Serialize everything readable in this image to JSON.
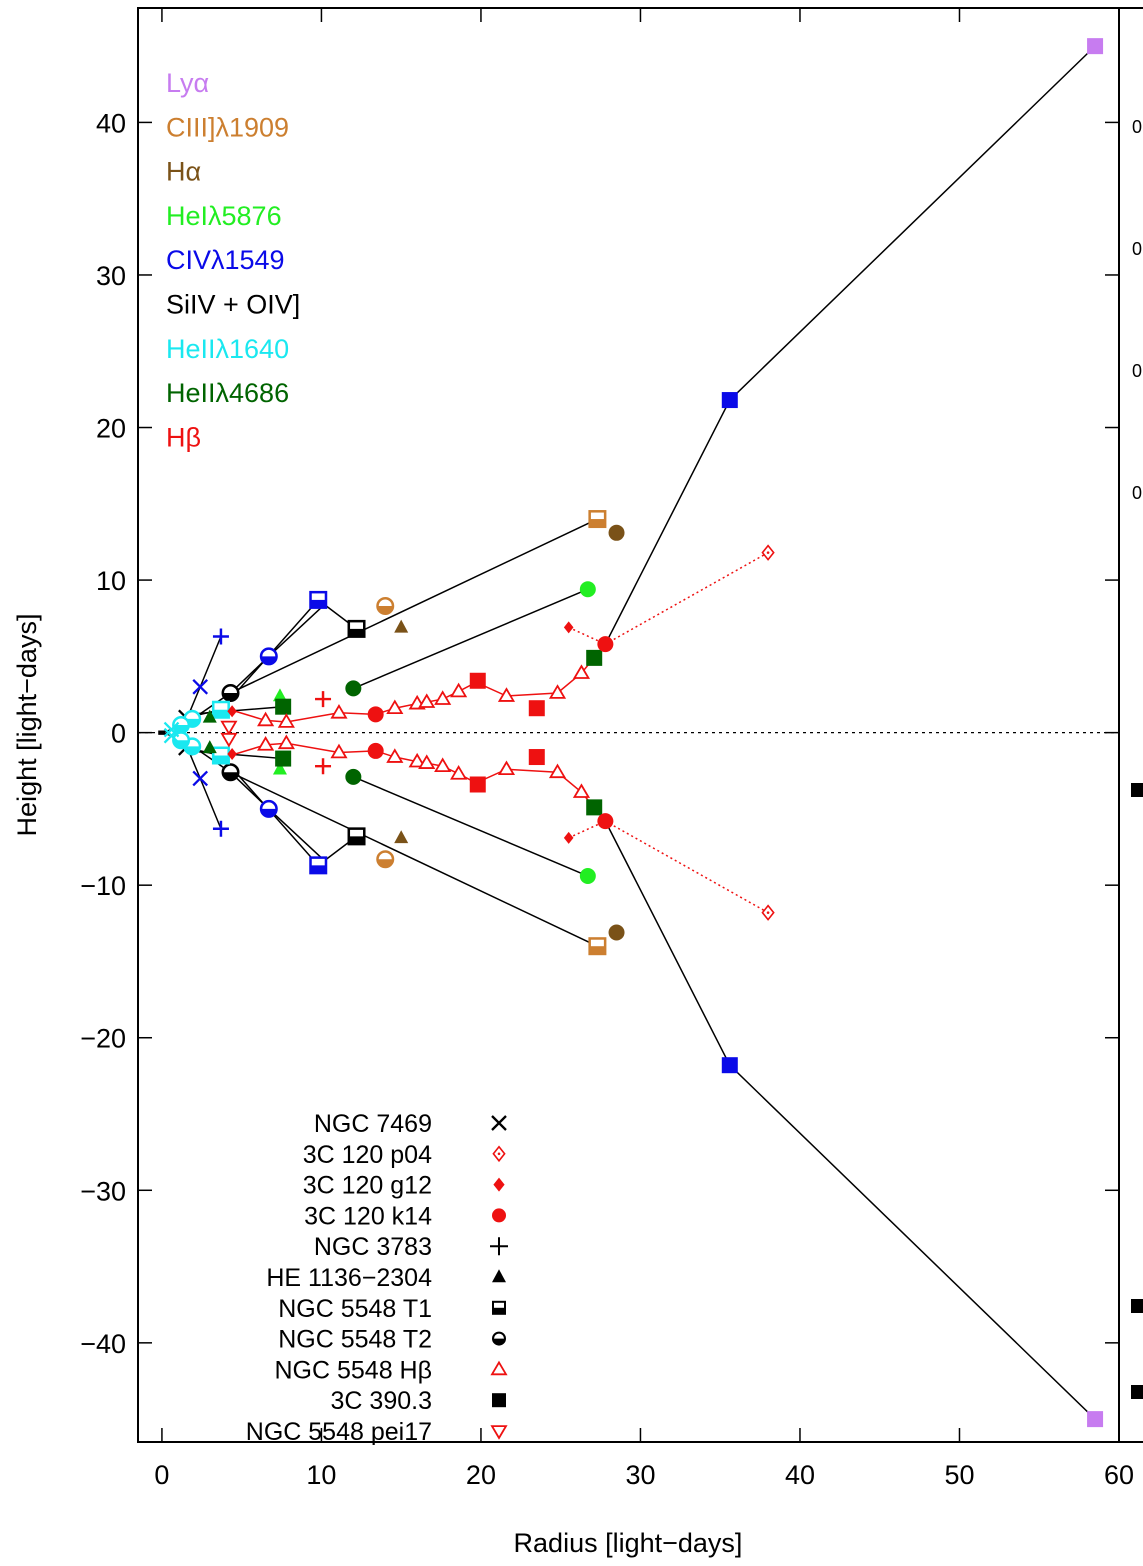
{
  "chart_data": {
    "type": "scatter",
    "xlabel": "Radius  [light−days]",
    "ylabel": "Height  [light−days]",
    "xlim": [
      -1.5,
      60
    ],
    "ylim": [
      -46.5,
      47.5
    ],
    "x_ticks": [
      0,
      10,
      20,
      30,
      40,
      50,
      60
    ],
    "y_ticks": [
      -40,
      -30,
      -20,
      -10,
      0,
      10,
      20,
      30,
      40
    ],
    "tick_label_text": {
      "-40": "−40",
      "-30": "−30",
      "-20": "−20",
      "-10": "−10",
      "0": "0",
      "10": "10",
      "20": "20",
      "30": "30",
      "40": "40"
    },
    "zero_line": "dotted",
    "symmetric_about_zero": true,
    "colors": {
      "Lya": "#c77cf0",
      "CIII": "#cc7f30",
      "Halpha": "#7a5218",
      "HeI": "#22ee22",
      "CIV": "#0a0ae8",
      "SiIV": "#000000",
      "HeII1640": "#1ae8f0",
      "HeII4686": "#006400",
      "Hbeta": "#ee1111"
    },
    "line_legend": [
      {
        "label": "Lyα",
        "color_key": "Lya"
      },
      {
        "label": "CIII]λ1909",
        "color_key": "CIII"
      },
      {
        "label": "Hα",
        "color_key": "Halpha"
      },
      {
        "label": "HeIλ5876",
        "color_key": "HeI"
      },
      {
        "label": "CIVλ1549",
        "color_key": "CIV"
      },
      {
        "label": "SiIV + OIV]",
        "color_key": "SiIV"
      },
      {
        "label": "HeIIλ1640",
        "color_key": "HeII1640"
      },
      {
        "label": "HeIIλ4686",
        "color_key": "HeII4686"
      },
      {
        "label": "Hβ",
        "color_key": "Hbeta"
      }
    ],
    "object_legend": [
      {
        "label": "NGC 7469",
        "marker": "x"
      },
      {
        "label": "3C 120 p04",
        "marker": "diamond-open"
      },
      {
        "label": "3C 120 g12",
        "marker": "diamond"
      },
      {
        "label": "3C 120 k14",
        "marker": "circle"
      },
      {
        "label": "NGC 3783",
        "marker": "plus-thin"
      },
      {
        "label": "HE 1136−2304",
        "marker": "triangle"
      },
      {
        "label": "NGC 5548 T1",
        "marker": "square-half"
      },
      {
        "label": "NGC 5548 T2",
        "marker": "circle-half"
      },
      {
        "label": "NGC 5548 Hβ",
        "marker": "triangle-open"
      },
      {
        "label": "3C 390.3",
        "marker": "square"
      },
      {
        "label": "NGC 5548 pei17",
        "marker": "triangle-down-open"
      }
    ],
    "object_legend_colors": {
      "3C 120 p04": "#ee1111",
      "3C 120 g12": "#ee1111",
      "3C 120 k14": "#ee1111",
      "NGC 5548 Hβ": "#ee1111",
      "NGC 5548 pei17": "#ee1111"
    },
    "connections": [
      {
        "object": "NGC 7469",
        "style": "solid",
        "color": "#000000",
        "points": [
          [
            0.0,
            0.0
          ],
          [
            0.6,
            0.2
          ],
          [
            1.6,
            1.0
          ],
          [
            2.4,
            3.0
          ],
          [
            3.7,
            6.3
          ]
        ]
      },
      {
        "object": "NGC 3783",
        "style": "solid",
        "color": "#000000",
        "points": [
          [
            1.6,
            1.2
          ],
          [
            4.1,
            1.4
          ],
          [
            7.6,
            1.7
          ]
        ]
      },
      {
        "object": "NGC 5548 T1",
        "style": "solid",
        "color": "#000000",
        "points": [
          [
            1.6,
            1.0
          ],
          [
            3.7,
            1.5
          ],
          [
            9.8,
            8.7
          ],
          [
            12.2,
            6.8
          ]
        ]
      },
      {
        "object": "NGC 5548 T2",
        "style": "solid",
        "color": "#000000",
        "points": [
          [
            1.8,
            0.8
          ],
          [
            4.3,
            2.6
          ],
          [
            27.3,
            14.0
          ]
        ]
      },
      {
        "object": "NGC 5548 T2b",
        "style": "solid",
        "color": "#000000",
        "points": [
          [
            4.3,
            2.6
          ],
          [
            6.7,
            5.0
          ],
          [
            10.2,
            8.4
          ]
        ]
      },
      {
        "object": "HE 1136-2304",
        "style": "solid",
        "color": "#000000",
        "points": [
          [
            12.0,
            2.9
          ],
          [
            26.7,
            9.4
          ]
        ]
      },
      {
        "object": "3C 390.3",
        "style": "solid",
        "color": "#000000",
        "points": [
          [
            27.8,
            5.8
          ],
          [
            35.6,
            21.8
          ],
          [
            58.5,
            45.0
          ]
        ]
      },
      {
        "object": "NGC 5548 Hβ",
        "style": "solid",
        "color": "#ee1111",
        "points": [
          [
            4.6,
            1.4
          ],
          [
            6.5,
            0.8
          ],
          [
            7.8,
            0.7
          ],
          [
            11.1,
            1.3
          ],
          [
            13.4,
            1.2
          ],
          [
            14.6,
            1.6
          ],
          [
            16.0,
            1.9
          ],
          [
            16.6,
            2.0
          ],
          [
            17.6,
            2.2
          ],
          [
            18.6,
            2.7
          ],
          [
            19.7,
            3.3
          ],
          [
            21.6,
            2.4
          ],
          [
            24.8,
            2.6
          ],
          [
            26.3,
            3.9
          ],
          [
            27.8,
            5.8
          ]
        ]
      },
      {
        "object": "3C 120 p04",
        "style": "dotted",
        "color": "#ee1111",
        "points": [
          [
            25.5,
            6.9
          ],
          [
            27.8,
            5.8
          ],
          [
            38.0,
            11.8
          ]
        ]
      }
    ],
    "markers": [
      {
        "x": 58.5,
        "y": 45.0,
        "marker": "square",
        "color_key": "Lya"
      },
      {
        "x": 27.3,
        "y": 14.0,
        "marker": "square-half",
        "color_key": "CIII"
      },
      {
        "x": 14.0,
        "y": 8.3,
        "marker": "circle-half",
        "color_key": "CIII"
      },
      {
        "x": 28.5,
        "y": 13.1,
        "marker": "circle",
        "color_key": "Halpha"
      },
      {
        "x": 15.0,
        "y": 6.9,
        "marker": "triangle",
        "color_key": "Halpha"
      },
      {
        "x": 26.7,
        "y": 9.4,
        "marker": "circle",
        "color_key": "HeI"
      },
      {
        "x": 7.4,
        "y": 2.4,
        "marker": "triangle",
        "color_key": "HeI"
      },
      {
        "x": 35.6,
        "y": 21.8,
        "marker": "square",
        "color_key": "CIV"
      },
      {
        "x": 9.8,
        "y": 8.7,
        "marker": "square-half",
        "color_key": "CIV"
      },
      {
        "x": 6.7,
        "y": 5.0,
        "marker": "circle-half",
        "color_key": "CIV"
      },
      {
        "x": 3.7,
        "y": 6.3,
        "marker": "plus",
        "color_key": "CIV"
      },
      {
        "x": 2.4,
        "y": 3.0,
        "marker": "x",
        "color_key": "CIV"
      },
      {
        "x": 12.2,
        "y": 6.8,
        "marker": "square-half",
        "color_key": "SiIV"
      },
      {
        "x": 4.3,
        "y": 2.6,
        "marker": "circle-half",
        "color_key": "SiIV"
      },
      {
        "x": 1.5,
        "y": 1.0,
        "marker": "x",
        "color_key": "SiIV"
      },
      {
        "x": 0.0,
        "y": 0.0,
        "marker": "square-small",
        "color_key": "SiIV"
      },
      {
        "x": 3.7,
        "y": 1.5,
        "marker": "square-half",
        "color_key": "HeII1640"
      },
      {
        "x": 1.9,
        "y": 0.9,
        "marker": "circle-half",
        "color_key": "HeII1640"
      },
      {
        "x": 1.2,
        "y": 0.5,
        "marker": "circle-half",
        "color_key": "HeII1640"
      },
      {
        "x": 0.6,
        "y": 0.2,
        "marker": "x",
        "color_key": "HeII1640"
      },
      {
        "x": 7.6,
        "y": 1.7,
        "marker": "square",
        "color_key": "HeII4686"
      },
      {
        "x": 12.0,
        "y": 2.9,
        "marker": "circle",
        "color_key": "HeII4686"
      },
      {
        "x": 27.1,
        "y": 4.9,
        "marker": "square",
        "color_key": "HeII4686"
      },
      {
        "x": 3.0,
        "y": 1.0,
        "marker": "triangle",
        "color_key": "HeII4686"
      },
      {
        "x": 38.0,
        "y": 11.8,
        "marker": "diamond-open",
        "color_key": "Hbeta"
      },
      {
        "x": 25.5,
        "y": 6.9,
        "marker": "diamond",
        "color_key": "Hbeta"
      },
      {
        "x": 27.8,
        "y": 5.8,
        "marker": "circle",
        "color_key": "Hbeta"
      },
      {
        "x": 13.4,
        "y": 1.2,
        "marker": "circle",
        "color_key": "Hbeta"
      },
      {
        "x": 10.1,
        "y": 2.2,
        "marker": "plus",
        "color_key": "Hbeta"
      },
      {
        "x": 19.8,
        "y": 3.4,
        "marker": "square",
        "color_key": "Hbeta"
      },
      {
        "x": 23.5,
        "y": 1.6,
        "marker": "square",
        "color_key": "Hbeta"
      },
      {
        "x": 4.4,
        "y": 1.4,
        "marker": "diamond",
        "color_key": "Hbeta"
      },
      {
        "x": 4.2,
        "y": 0.4,
        "marker": "triangle-down-open",
        "color_key": "Hbeta"
      },
      {
        "x": 6.5,
        "y": 0.8,
        "marker": "triangle-open",
        "color_key": "Hbeta"
      },
      {
        "x": 7.8,
        "y": 0.7,
        "marker": "triangle-open",
        "color_key": "Hbeta"
      },
      {
        "x": 11.1,
        "y": 1.3,
        "marker": "triangle-open",
        "color_key": "Hbeta"
      },
      {
        "x": 14.6,
        "y": 1.6,
        "marker": "triangle-open",
        "color_key": "Hbeta"
      },
      {
        "x": 16.0,
        "y": 1.9,
        "marker": "triangle-open",
        "color_key": "Hbeta"
      },
      {
        "x": 16.6,
        "y": 2.0,
        "marker": "triangle-open",
        "color_key": "Hbeta"
      },
      {
        "x": 17.6,
        "y": 2.2,
        "marker": "triangle-open",
        "color_key": "Hbeta"
      },
      {
        "x": 18.6,
        "y": 2.7,
        "marker": "triangle-open",
        "color_key": "Hbeta"
      },
      {
        "x": 21.6,
        "y": 2.4,
        "marker": "triangle-open",
        "color_key": "Hbeta"
      },
      {
        "x": 24.8,
        "y": 2.6,
        "marker": "triangle-open",
        "color_key": "Hbeta"
      },
      {
        "x": 26.3,
        "y": 3.9,
        "marker": "triangle-open",
        "color_key": "Hbeta"
      }
    ]
  },
  "right_panel": {
    "y_tick_labels": [
      "0",
      "0",
      "0",
      "0"
    ],
    "square_marker_count": 3
  }
}
